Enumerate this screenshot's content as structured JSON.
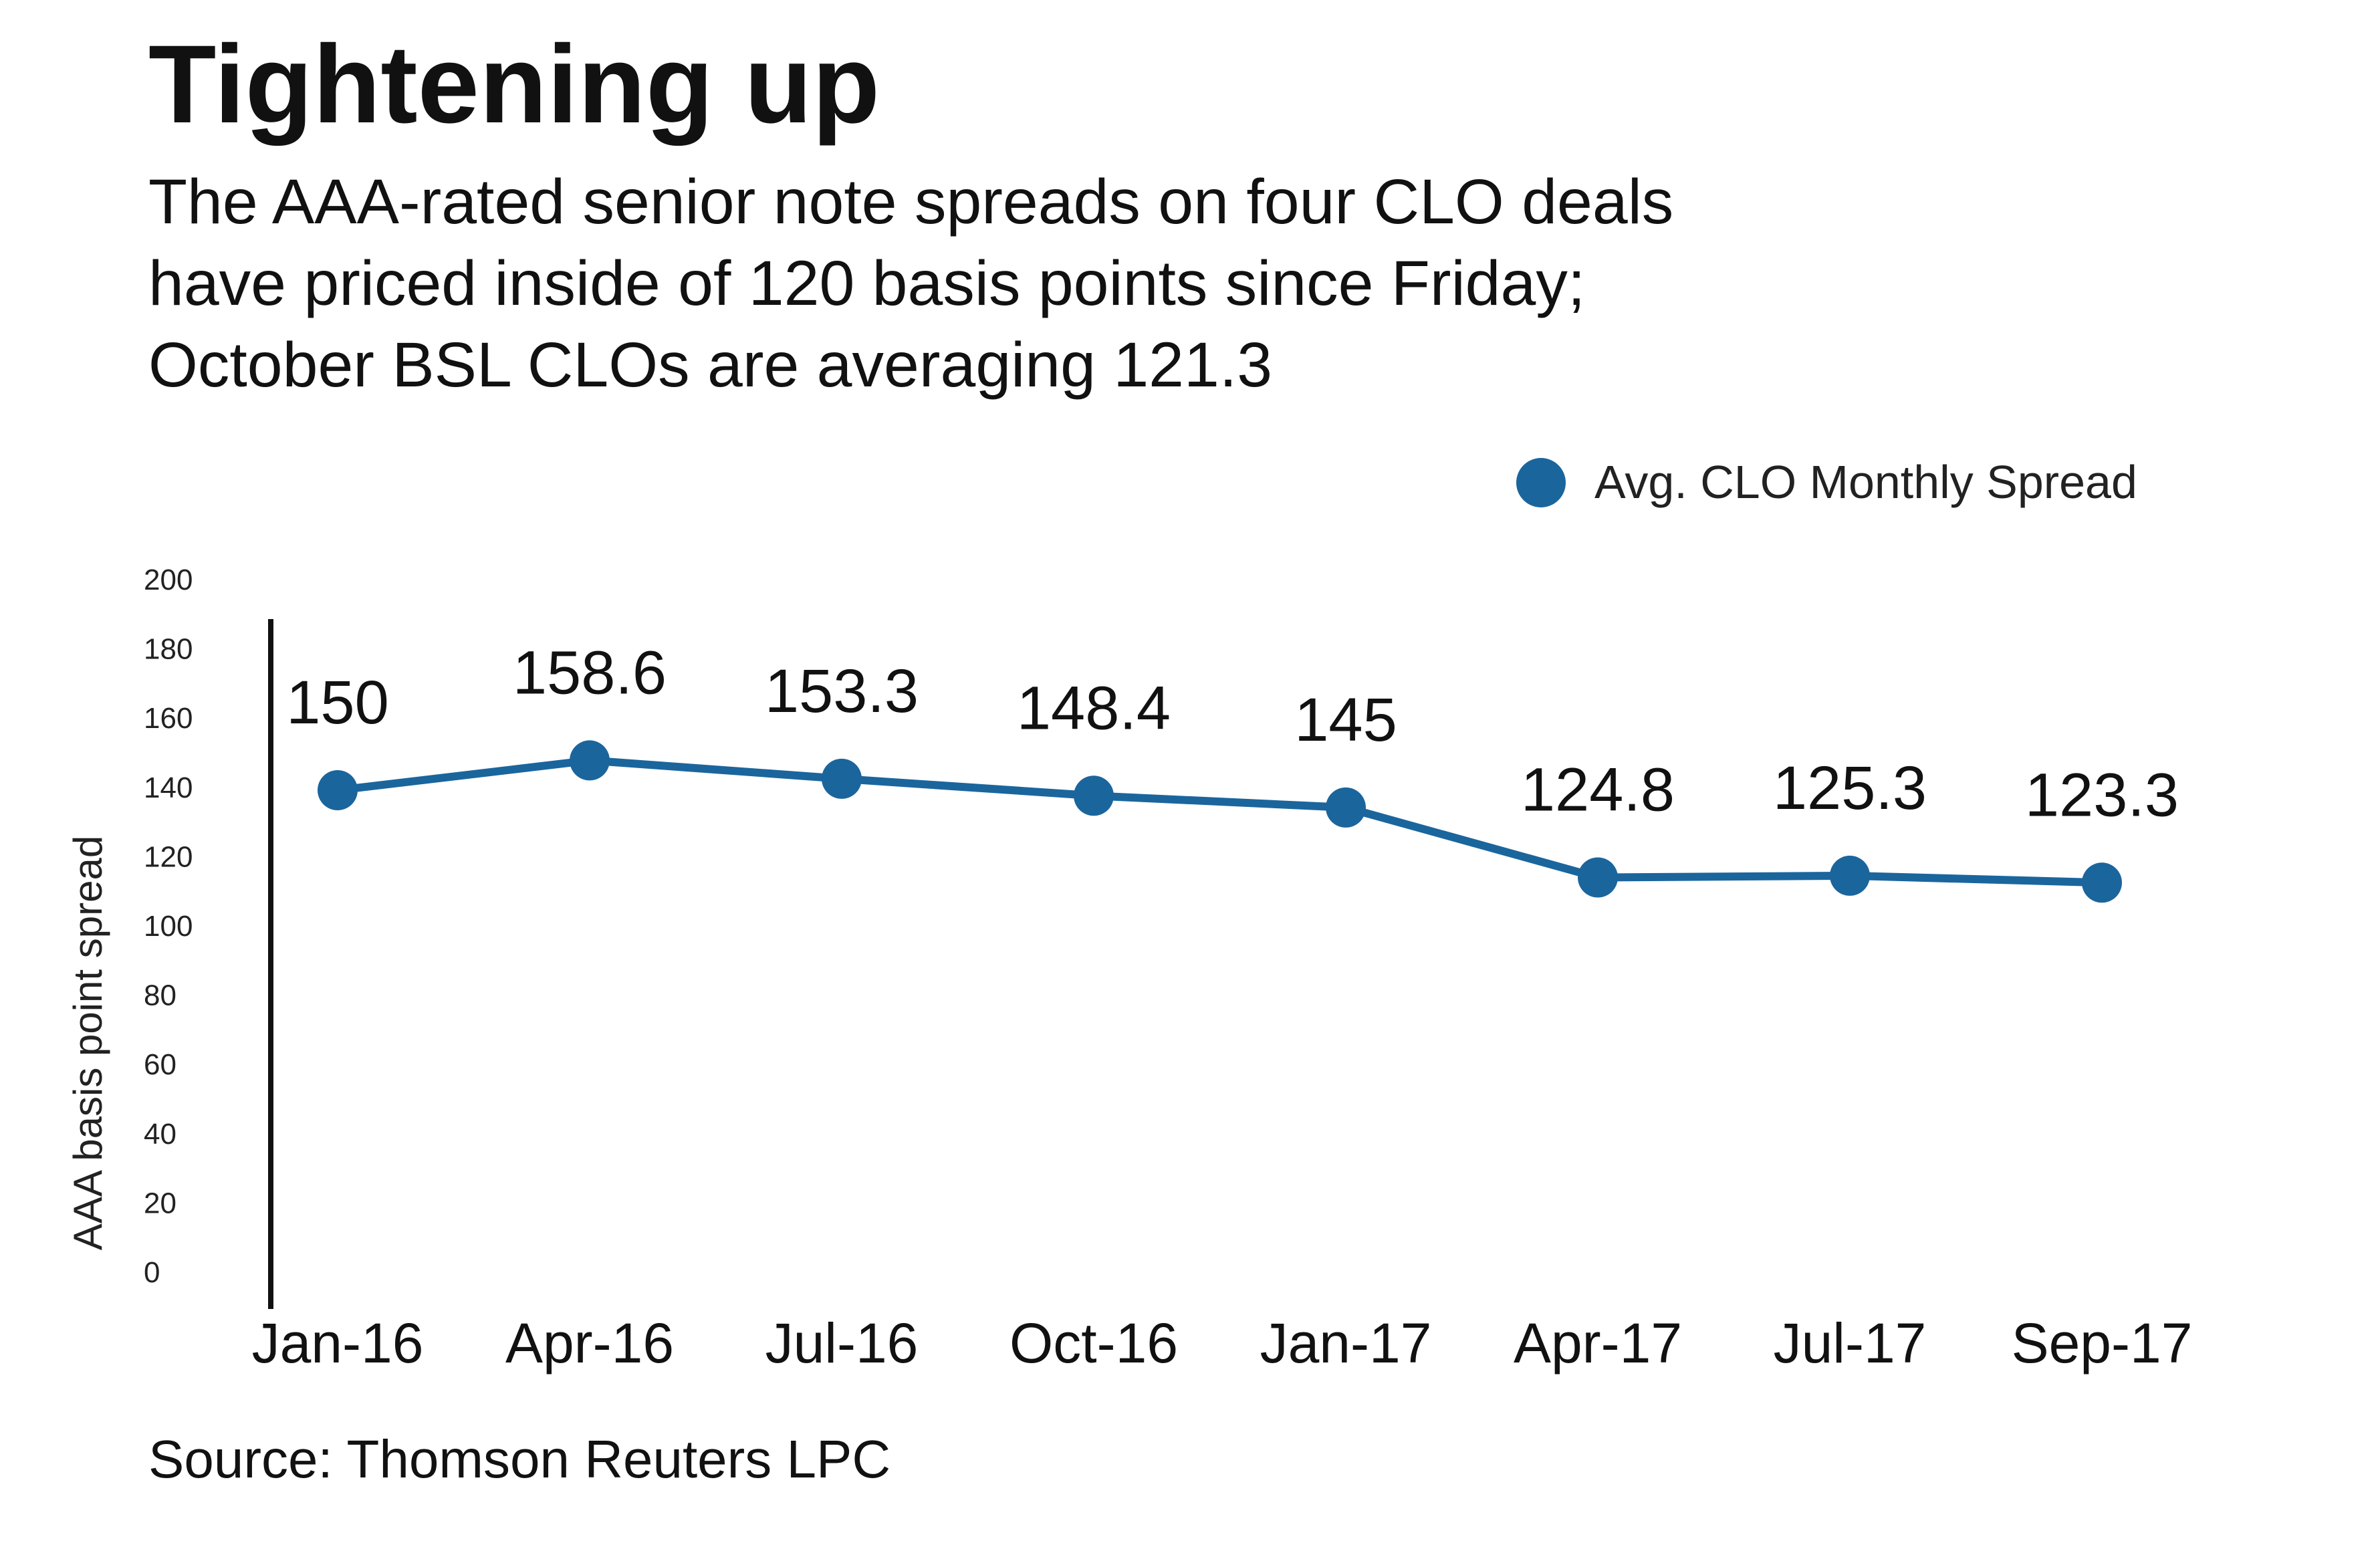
{
  "chart_data": {
    "type": "line",
    "title": "Tightening up",
    "subtitle_lines": [
      "The AAA-rated senior note spreads on four CLO deals",
      "have priced inside of 120 basis points since Friday;",
      "October BSL CLOs are averaging 121.3"
    ],
    "xlabel": "",
    "ylabel": "AAA basis point spread",
    "ylim": [
      0,
      200
    ],
    "yticks": [
      0,
      20,
      40,
      60,
      80,
      100,
      120,
      140,
      160,
      180,
      200
    ],
    "categories": [
      "Jan-16",
      "Apr-16",
      "Jul-16",
      "Oct-16",
      "Jan-17",
      "Apr-17",
      "Jul-17",
      "Sep-17"
    ],
    "series": [
      {
        "name": "Avg. CLO Monthly Spread",
        "values": [
          150,
          158.6,
          153.3,
          148.4,
          145,
          124.8,
          125.3,
          123.3
        ],
        "labels": [
          "150",
          "158.6",
          "153.3",
          "148.4",
          "145",
          "124.8",
          "125.3",
          "123.3"
        ],
        "color": "#1b659d"
      }
    ],
    "legend": "top-right",
    "grid": false,
    "source": "Source: Thomson Reuters LPC"
  }
}
